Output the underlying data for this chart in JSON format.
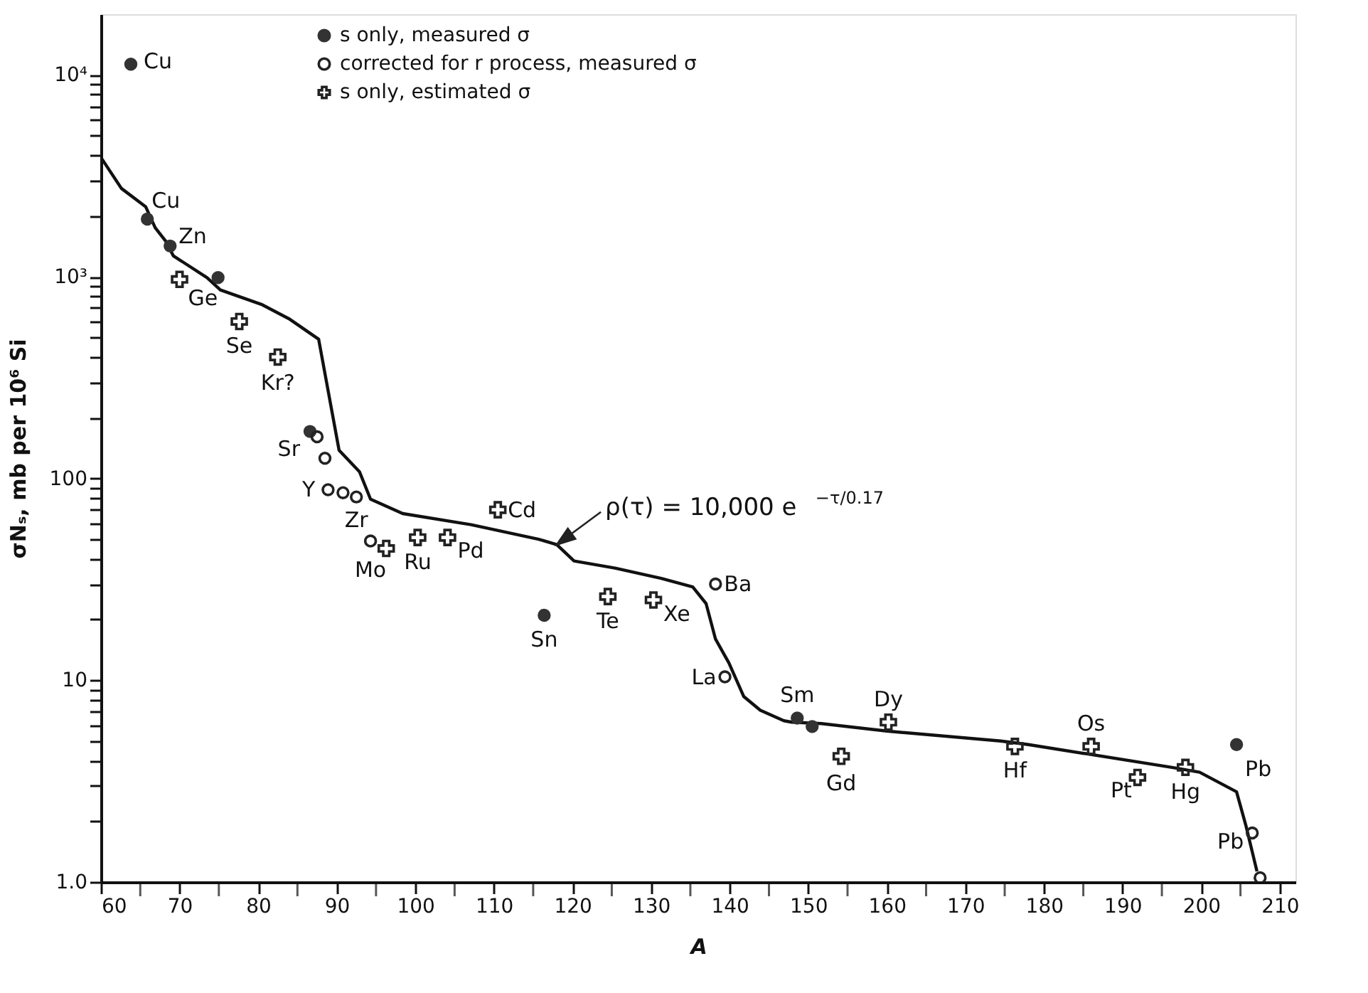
{
  "chart_data": {
    "type": "scatter",
    "xlabel": "A",
    "ylabel": "σNₛ, mb per 10⁶ Si",
    "log": "y",
    "grid": false,
    "legend": "top left",
    "xlim": [
      60,
      212
    ],
    "ylim": [
      1,
      20000
    ],
    "xticks": [
      60,
      {
        "value": 65,
        "label": null
      },
      70,
      {
        "value": 75,
        "label": null
      },
      80,
      {
        "value": 85,
        "label": null
      },
      90,
      {
        "value": 95,
        "label": null
      },
      100,
      {
        "value": 105,
        "label": null
      },
      110,
      {
        "value": 115,
        "label": null
      },
      120,
      {
        "value": 125,
        "label": null
      },
      130,
      {
        "value": 135,
        "label": null
      },
      140,
      {
        "value": 145,
        "label": null
      },
      150,
      {
        "value": 155,
        "label": null
      },
      160,
      {
        "value": 165,
        "label": null
      },
      170,
      {
        "value": 175,
        "label": null
      },
      180,
      {
        "value": 185,
        "label": null
      },
      190,
      {
        "value": 195,
        "label": null
      },
      200,
      {
        "value": 205,
        "label": null
      },
      210
    ],
    "yticks": [
      {
        "value": 1,
        "label": "1.0"
      },
      {
        "value": 2,
        "label": null
      },
      {
        "value": 3,
        "label": null
      },
      {
        "value": 4,
        "label": null
      },
      {
        "value": 5,
        "label": null
      },
      {
        "value": 6,
        "label": null
      },
      {
        "value": 7,
        "label": null
      },
      {
        "value": 8,
        "label": null
      },
      {
        "value": 9,
        "label": null
      },
      10,
      {
        "value": 20,
        "label": null
      },
      {
        "value": 30,
        "label": null
      },
      {
        "value": 40,
        "label": null
      },
      {
        "value": 50,
        "label": null
      },
      {
        "value": 60,
        "label": null
      },
      {
        "value": 70,
        "label": null
      },
      {
        "value": 80,
        "label": null
      },
      {
        "value": 90,
        "label": null
      },
      100,
      {
        "value": 200,
        "label": null
      },
      {
        "value": 300,
        "label": null
      },
      {
        "value": 400,
        "label": null
      },
      {
        "value": 500,
        "label": null
      },
      {
        "value": 600,
        "label": null
      },
      {
        "value": 700,
        "label": null
      },
      {
        "value": 800,
        "label": null
      },
      {
        "value": 900,
        "label": null
      },
      {
        "value": 1000,
        "label": "10³"
      },
      {
        "value": 2000,
        "label": null
      },
      {
        "value": 3000,
        "label": null
      },
      {
        "value": 4000,
        "label": null
      },
      {
        "value": 5000,
        "label": null
      },
      {
        "value": 6000,
        "label": null
      },
      {
        "value": 7000,
        "label": null
      },
      {
        "value": 8000,
        "label": null
      },
      {
        "value": 9000,
        "label": null
      },
      {
        "value": 10000,
        "label": "10⁴"
      }
    ],
    "annotations": [
      {
        "text": "ρ(τ) = 10,000 e$^{−τ/0.17}$",
        "x": 118,
        "y": 47
      }
    ],
    "series": [
      {
        "name": "s only, measured σ",
        "marker": "circle",
        "color": "#333333",
        "x": [
          63.8,
          65.9,
          68.8,
          74.9,
          86.6,
          116.4,
          148.6,
          150.5,
          204.5
        ],
        "values": [
          11300,
          1930,
          1420,
          990,
          171,
          21,
          6.5,
          5.9,
          4.8
        ],
        "value_labels": [
          "Cu",
          "Cu",
          "Zn",
          null,
          "Sr",
          "Sn",
          "Sm",
          null,
          "Pb"
        ]
      },
      {
        "name": "corrected for r process, measured σ",
        "marker": "circle",
        "color": "#222222",
        "x": [
          87.5,
          88.5,
          88.9,
          90.8,
          92.5,
          94.3,
          138.2,
          139.4,
          206.5,
          207.5
        ],
        "values": [
          161,
          126,
          88,
          85,
          81,
          49,
          30,
          10.4,
          1.75,
          1.05
        ],
        "value_labels": [
          null,
          null,
          "Y",
          null,
          "Zr",
          "Mo",
          "Ba",
          "La",
          "Pb",
          null
        ]
      },
      {
        "name": "s only, estimated σ",
        "marker": "cross",
        "color": "#222222",
        "x": [
          70,
          77.6,
          82.5,
          96.3,
          100.3,
          104.1,
          110.5,
          124.5,
          130.3,
          154.2,
          160.2,
          176.3,
          186,
          191.9,
          198
        ],
        "values": [
          970,
          600,
          400,
          45,
          51,
          51,
          70,
          26,
          25,
          4.2,
          6.2,
          4.7,
          4.7,
          3.3,
          3.7
        ],
        "value_labels": [
          "Ge",
          "Se",
          "Kr?",
          null,
          "Ru",
          "Pd",
          "Cd",
          "Te",
          "Xe",
          "Gd",
          "Dy",
          "Hf",
          "Os",
          "Pt",
          "Hg"
        ]
      },
      {
        "type": "line",
        "color": "#111111",
        "x": [
          60,
          62.6,
          65.7,
          66.9,
          68.3,
          69.2,
          73.5,
          75.2,
          80.4,
          83.9,
          87.7,
          90.3,
          92.9,
          94.3,
          98.4,
          107.1,
          115.7,
          118,
          120.2,
          125.4,
          131.3,
          135.3,
          137,
          138.2,
          139.9,
          141.8,
          143.9,
          146.9,
          147.9,
          151.7,
          160,
          174.5,
          178,
          196.3,
          199.8,
          204.5,
          205.7,
          207.1
        ],
        "values": [
          3900,
          2740,
          2220,
          1750,
          1490,
          1270,
          990,
          860,
          730,
          620,
          490,
          138,
          108,
          79,
          67,
          59,
          50,
          47,
          39,
          36,
          32,
          29,
          24,
          16,
          12.2,
          8.3,
          7.1,
          6.3,
          6.2,
          6.1,
          5.6,
          5.0,
          4.8,
          3.7,
          3.5,
          2.8,
          1.9,
          1.13
        ]
      }
    ]
  }
}
